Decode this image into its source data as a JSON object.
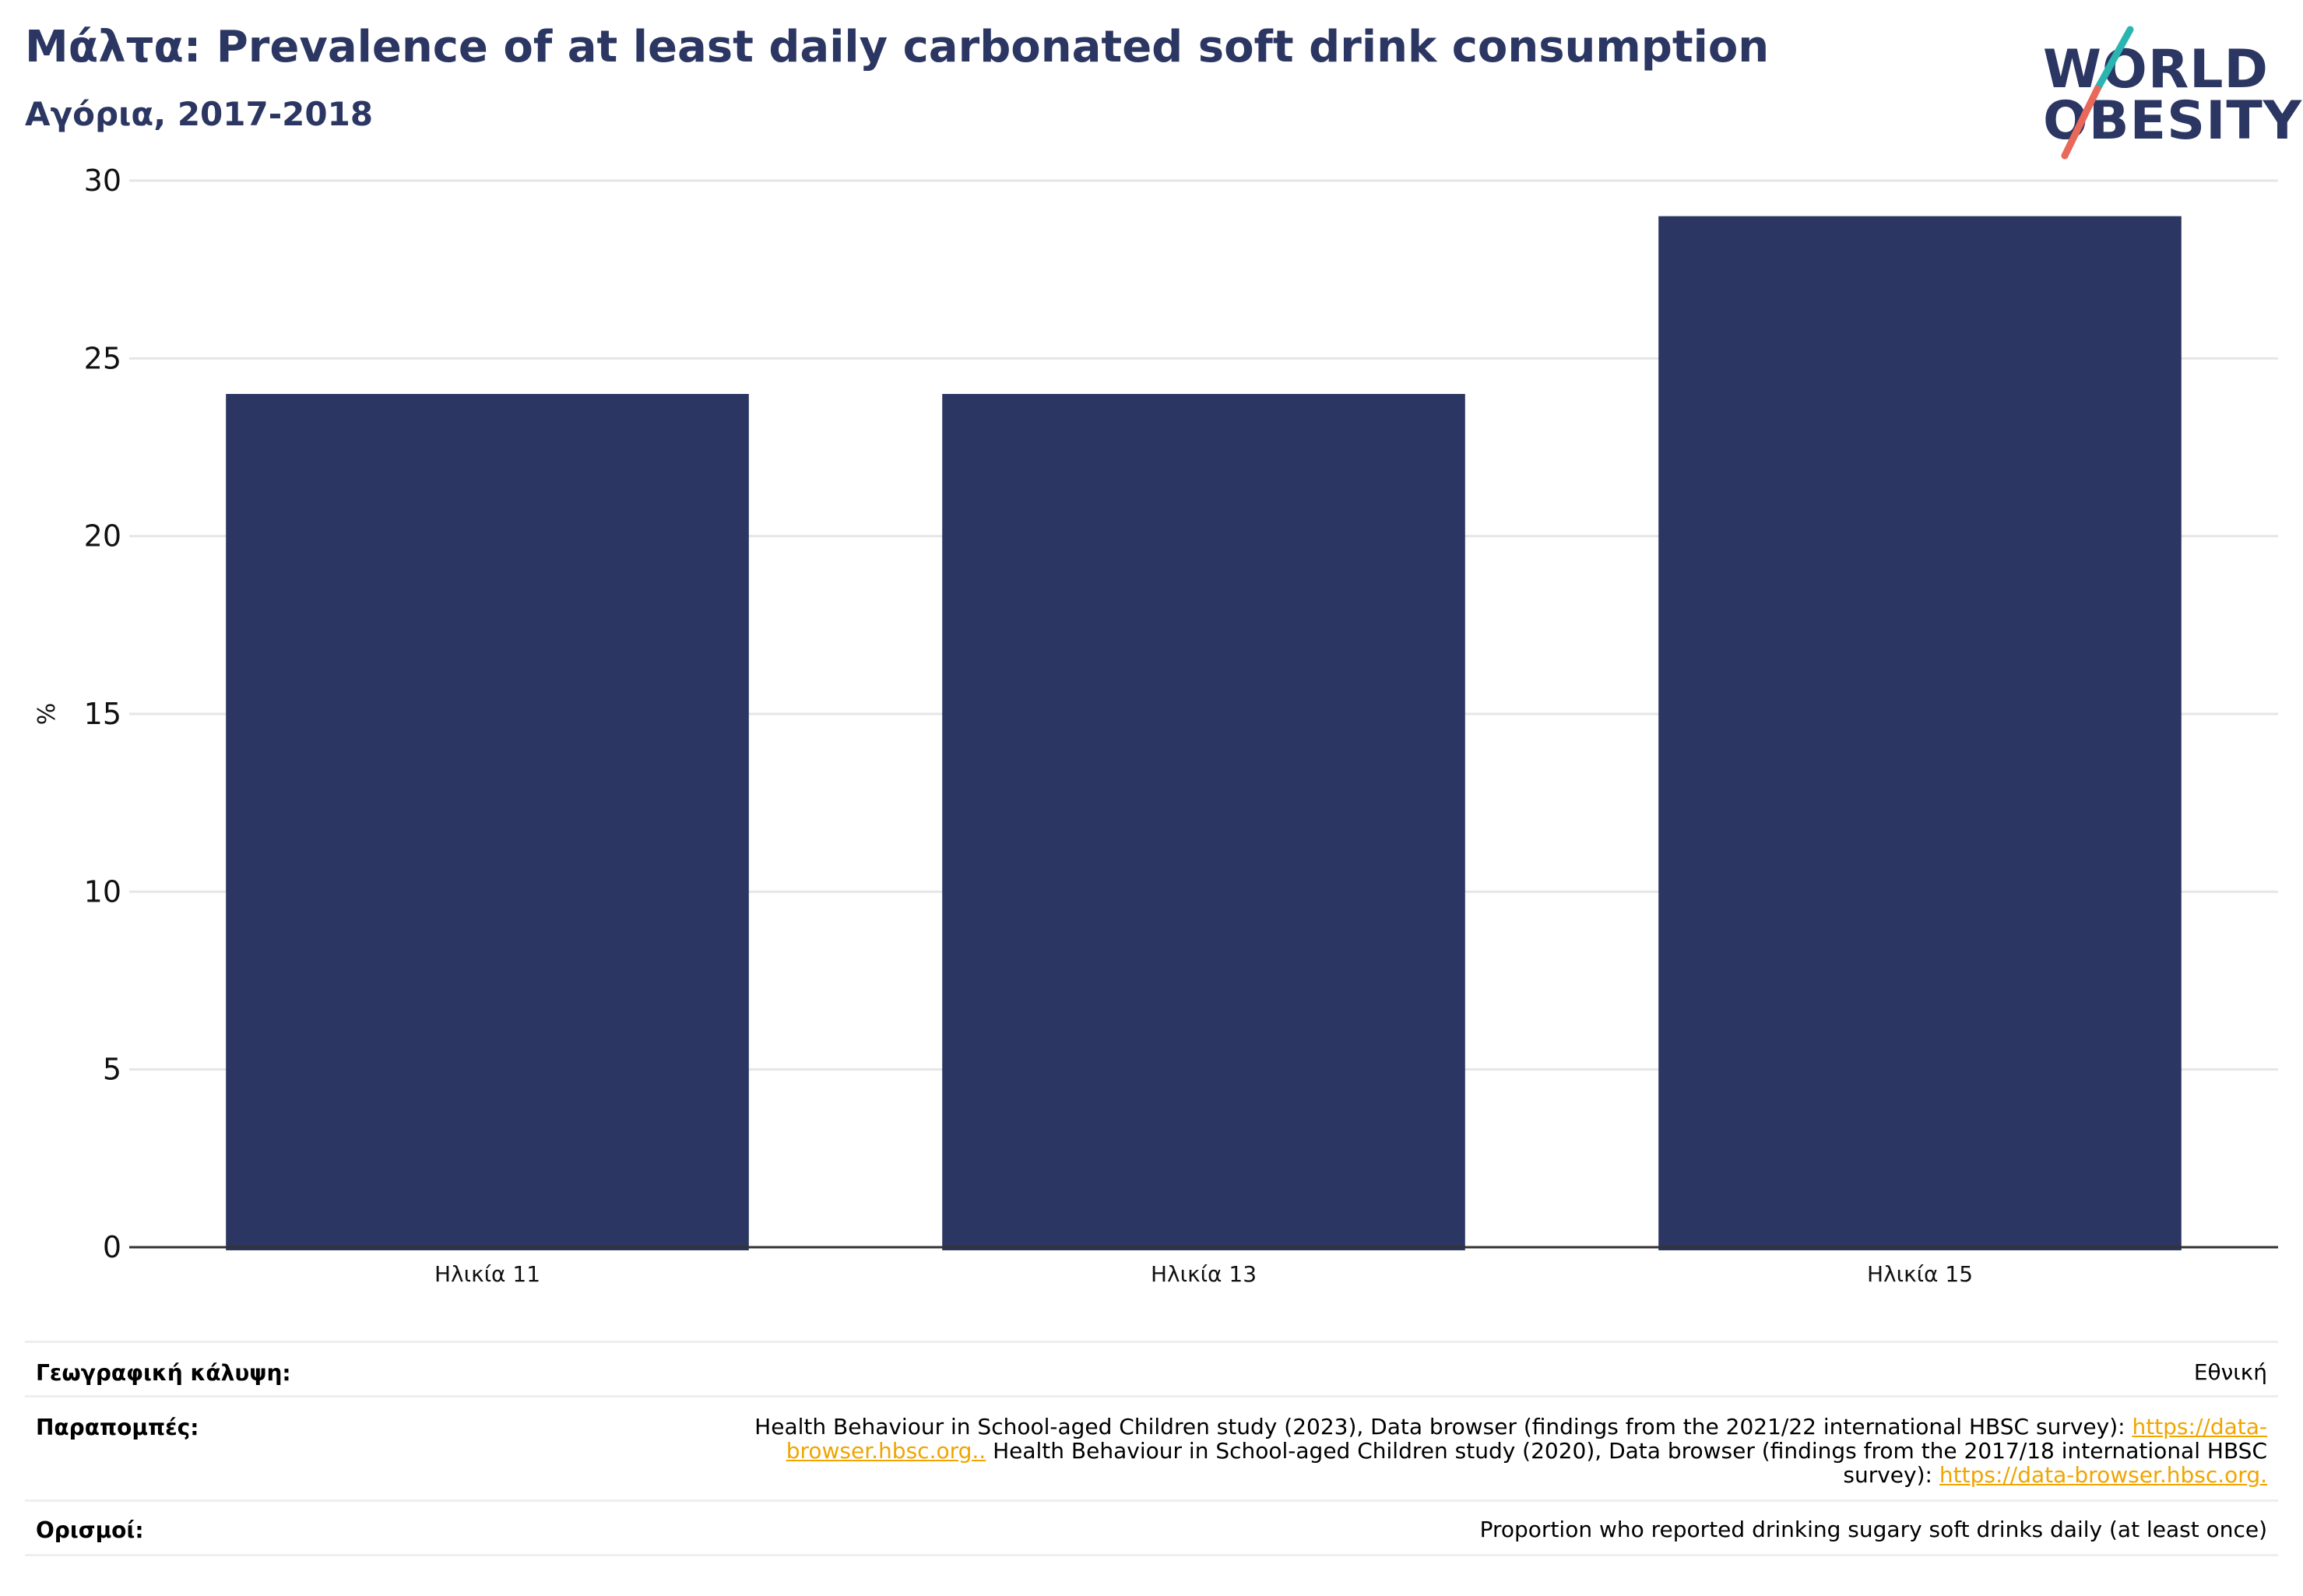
{
  "header": {
    "title": "Μάλτα: Prevalence of at least daily carbonated soft drink consumption",
    "subtitle": "Αγόρια, 2017-2018"
  },
  "logo": {
    "line1": "WORLD",
    "line2": "OBESITY"
  },
  "chart_data": {
    "type": "bar",
    "categories": [
      "Ηλικία 11",
      "Ηλικία 13",
      "Ηλικία 15"
    ],
    "values": [
      24,
      24,
      29
    ],
    "xlabel": "",
    "ylabel": "%",
    "ylim": [
      0,
      30
    ],
    "yticks": [
      0,
      5,
      10,
      15,
      20,
      25,
      30
    ],
    "grid": true,
    "bar_color": "#2b3662"
  },
  "meta": {
    "coverage": {
      "label": "Γεωγραφική κάλυψη:",
      "value": "Εθνική"
    },
    "references": {
      "label": "Παραπομπές:",
      "text1": "Health Behaviour in School-aged Children study (2023), Data browser (findings from the 2021/22 international HBSC survey): ",
      "link1_a": "https://data-",
      "link1_b": "browser.hbsc.org..",
      "text2": " Health Behaviour in School-aged Children study (2020), Data browser (findings from the 2017/18 international HBSC",
      "text3": "survey): ",
      "link2": "https://data-browser.hbsc.org."
    },
    "definitions": {
      "label": "Ορισμοί:",
      "value": "Proportion who reported drinking sugary soft drinks daily (at least once)"
    }
  },
  "colors": {
    "title": "#2b3662",
    "bar": "#2b3662",
    "grid": "#e6e6e6",
    "axis": "#333333",
    "link": "#f0a500",
    "logo_teal": "#2bb5b0",
    "logo_coral": "#e8685a"
  }
}
